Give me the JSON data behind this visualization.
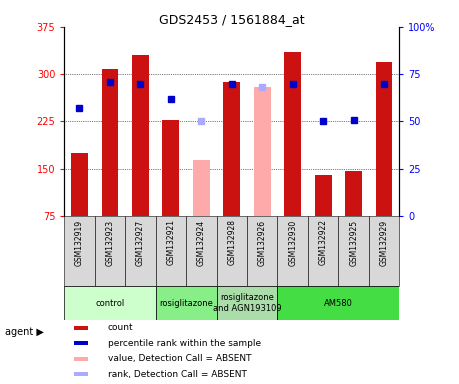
{
  "title": "GDS2453 / 1561884_at",
  "samples": [
    "GSM132919",
    "GSM132923",
    "GSM132927",
    "GSM132921",
    "GSM132924",
    "GSM132928",
    "GSM132926",
    "GSM132930",
    "GSM132922",
    "GSM132925",
    "GSM132929"
  ],
  "count_values": [
    175,
    308,
    330,
    228,
    null,
    287,
    null,
    335,
    140,
    147,
    320
  ],
  "count_absent": [
    null,
    null,
    null,
    null,
    163,
    null,
    280,
    null,
    null,
    null,
    null
  ],
  "rank_present": [
    57,
    71,
    70,
    62,
    null,
    70,
    null,
    70,
    50,
    51,
    70
  ],
  "rank_absent": [
    null,
    null,
    null,
    null,
    50,
    null,
    68,
    null,
    null,
    null,
    null
  ],
  "ylim_left": [
    75,
    375
  ],
  "ylim_right": [
    0,
    100
  ],
  "yticks_left": [
    75,
    150,
    225,
    300,
    375
  ],
  "yticks_right": [
    0,
    25,
    50,
    75,
    100
  ],
  "groups": [
    {
      "label": "control",
      "start": 0,
      "end": 3,
      "color": "#ccffcc"
    },
    {
      "label": "rosiglitazone",
      "start": 3,
      "end": 5,
      "color": "#88ee88"
    },
    {
      "label": "rosiglitazone\nand AGN193109",
      "start": 5,
      "end": 7,
      "color": "#aaddaa"
    },
    {
      "label": "AM580",
      "start": 7,
      "end": 11,
      "color": "#44dd44"
    }
  ],
  "bar_color_present": "#cc1111",
  "bar_color_absent": "#ffaaaa",
  "rank_color_present": "#0000cc",
  "rank_color_absent": "#aaaaff",
  "bar_width": 0.55,
  "legend_items": [
    {
      "color": "#cc1111",
      "label": "count"
    },
    {
      "color": "#0000cc",
      "label": "percentile rank within the sample"
    },
    {
      "color": "#ffaaaa",
      "label": "value, Detection Call = ABSENT"
    },
    {
      "color": "#aaaaff",
      "label": "rank, Detection Call = ABSENT"
    }
  ],
  "background_color": "#ffffff",
  "plot_bg_color": "#ffffff"
}
